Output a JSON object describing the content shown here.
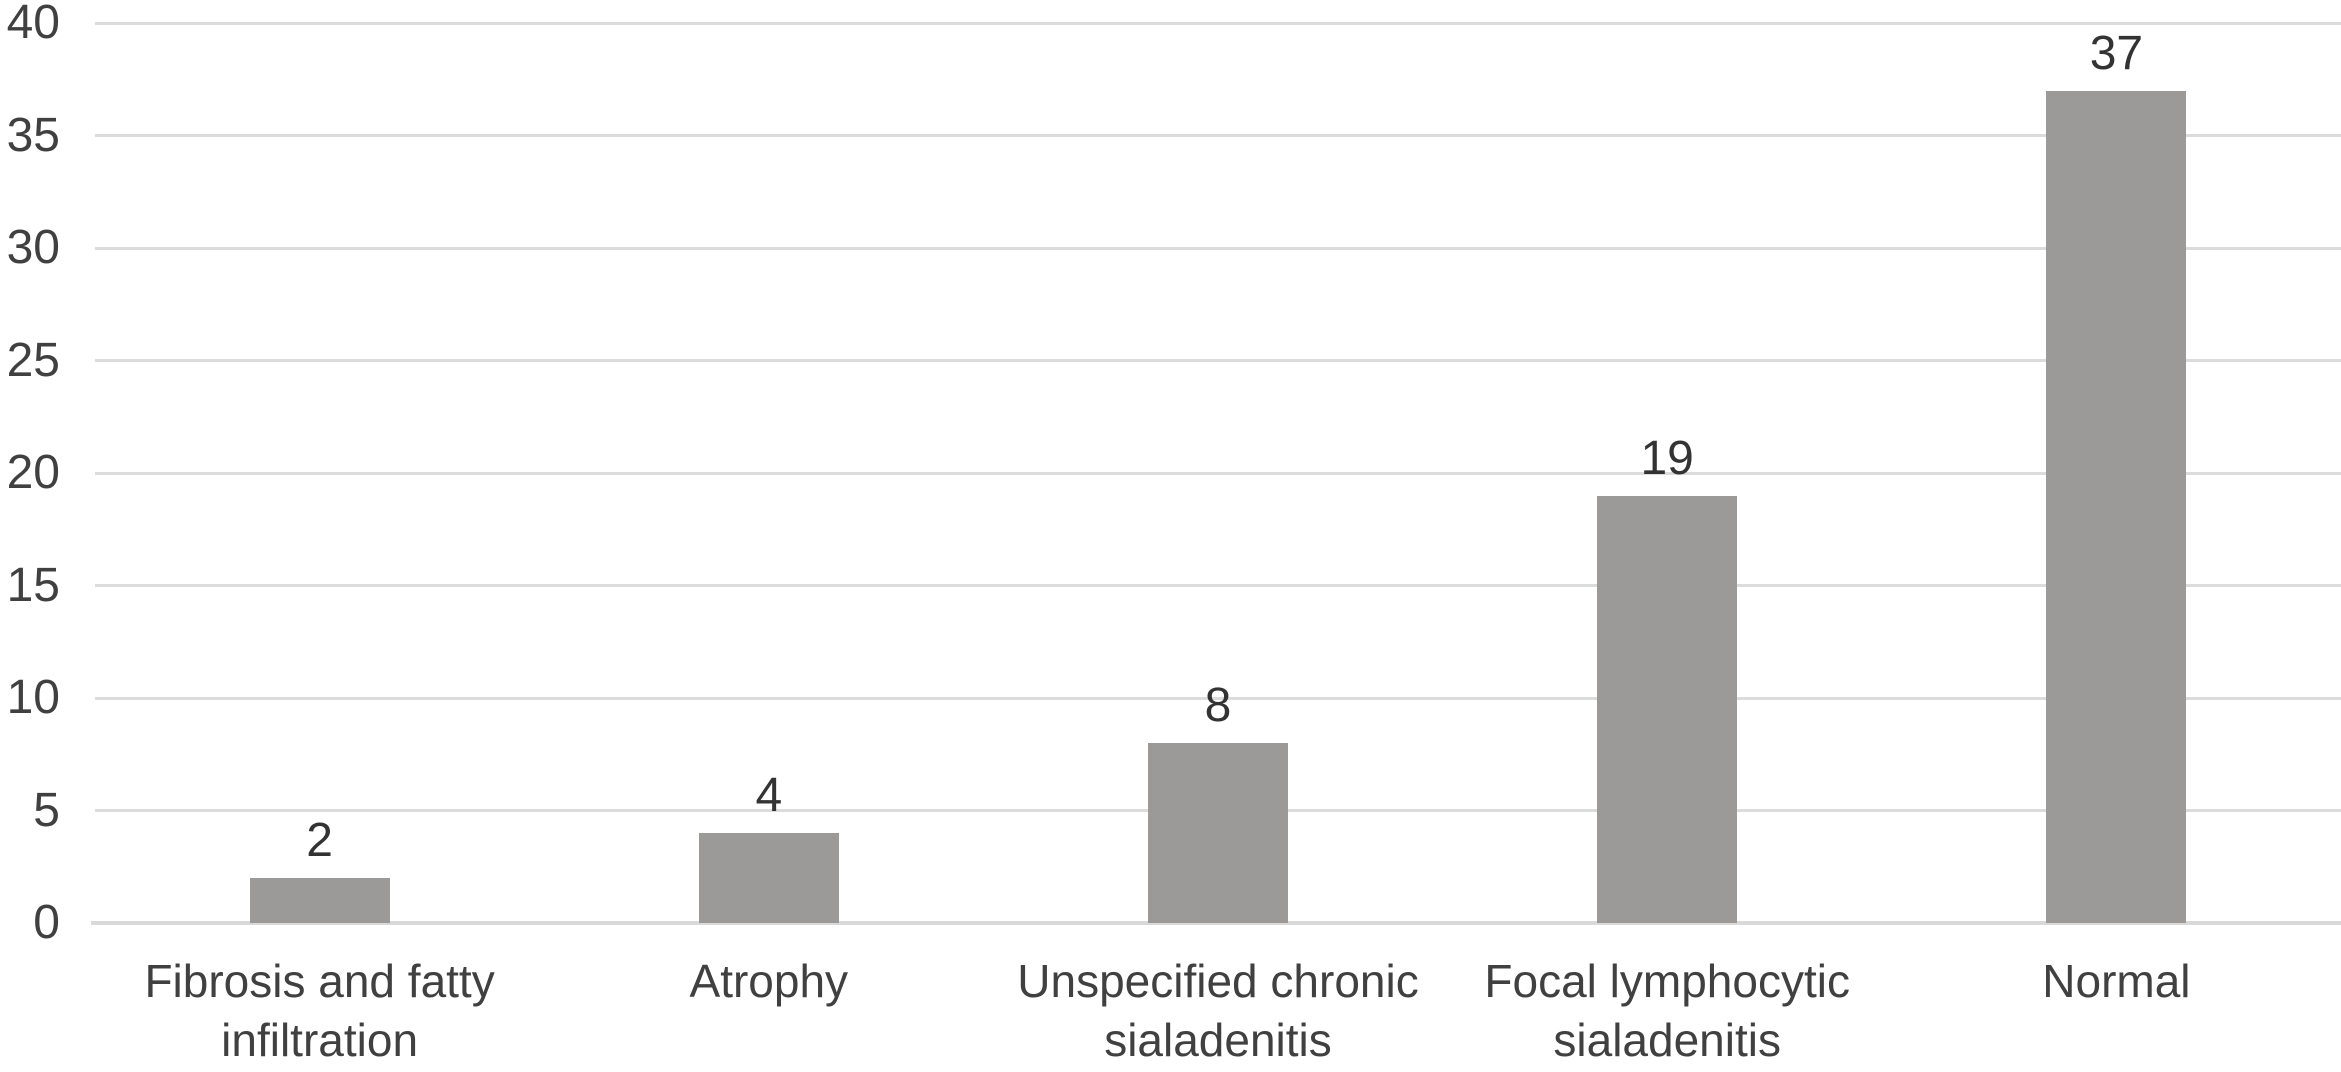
{
  "chart_data": {
    "type": "bar",
    "title": "",
    "xlabel": "",
    "ylabel": "",
    "categories": [
      "Fibrosis and fatty infiltration",
      "Atrophy",
      "Unspecified chronic sialadenitis",
      "Focal lymphocytic sialadenitis",
      "Normal"
    ],
    "values": [
      2,
      4,
      8,
      19,
      37
    ],
    "data_labels": [
      "2",
      "4",
      "8",
      "19",
      "37"
    ],
    "ylim": [
      0,
      40
    ],
    "ytick_interval": 5,
    "yticks": [
      "0",
      "5",
      "10",
      "15",
      "20",
      "25",
      "30",
      "35",
      "40"
    ],
    "grid": "horizontal",
    "legend": "none",
    "colors": {
      "bar": "#9c9a98",
      "gridline": "#dcdcdc",
      "baseline": "#d9d9d9",
      "tick_text": "#404040",
      "value_label_text": "#333333",
      "category_text": "#404040",
      "background": "#ffffff"
    }
  }
}
